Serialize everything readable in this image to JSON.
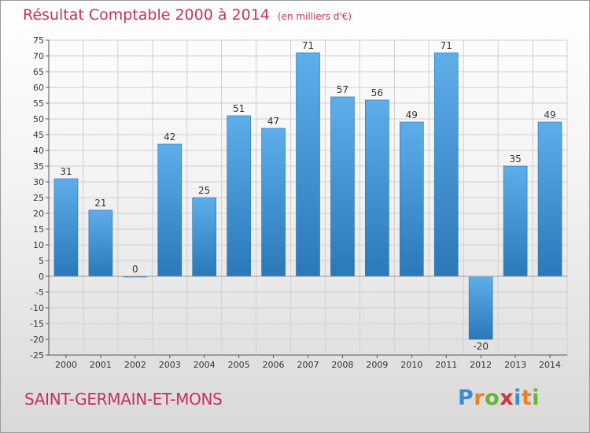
{
  "header": {
    "title": "Résultat Comptable 2000 à 2014",
    "subtitle": "(en milliers d'€)"
  },
  "commune": "SAINT-GERMAIN-ET-MONS",
  "logo": {
    "letters": [
      "P",
      "r",
      "o",
      "x",
      "i",
      "t",
      "i"
    ],
    "colors": [
      "#3a8fd0",
      "#e8802a",
      "#69b33a",
      "#d4343c",
      "#3a8fd0",
      "#e8802a",
      "#69b33a"
    ]
  },
  "colors": {
    "bar_top": "#5eaeea",
    "bar_bottom": "#2a78b8",
    "title": "#c8315a",
    "grid": "#cfcfcf",
    "axis": "#555555"
  },
  "chart_data": {
    "type": "bar",
    "title": "Résultat Comptable 2000 à 2014",
    "xlabel": "",
    "ylabel": "(en milliers d'€)",
    "categories": [
      "2000",
      "2001",
      "2002",
      "2003",
      "2004",
      "2005",
      "2006",
      "2007",
      "2008",
      "2009",
      "2010",
      "2011",
      "2012",
      "2013",
      "2014"
    ],
    "values": [
      31,
      21,
      0,
      42,
      25,
      51,
      47,
      71,
      57,
      56,
      49,
      71,
      -20,
      35,
      49
    ],
    "ylim": [
      -25,
      75
    ],
    "yticks": [
      75,
      70,
      65,
      60,
      55,
      50,
      45,
      40,
      35,
      30,
      25,
      20,
      15,
      10,
      5,
      0,
      -5,
      -10,
      -15,
      -20,
      -25
    ],
    "grid": true
  }
}
